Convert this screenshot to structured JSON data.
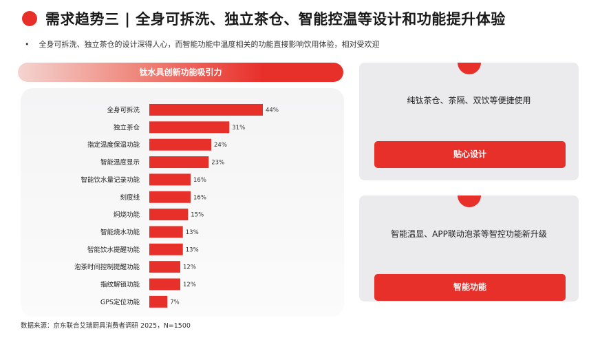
{
  "header": {
    "title": "需求趋势三 | 全身可拆洗、独立茶仓、智能控温等设计和功能提升体验",
    "bullet_marker": "•",
    "bullet": "全身可拆洗、独立茶仓的设计深得人心，而智能功能中温度相关的功能直接影响饮用体验，相对受欢迎"
  },
  "chart_banner": "钛水具创新功能吸引力",
  "chart_data": {
    "type": "bar",
    "orientation": "horizontal",
    "categories": [
      "全身可拆洗",
      "独立茶仓",
      "指定温度保温功能",
      "智能温度显示",
      "智能饮水量记录功能",
      "刻度线",
      "焖烧功能",
      "智能烧水功能",
      "智能饮水提醒功能",
      "泡茶时间控制提醒功能",
      "指纹解锁功能",
      "GPS定位功能"
    ],
    "values": [
      44,
      31,
      24,
      23,
      16,
      16,
      15,
      13,
      13,
      12,
      12,
      7
    ],
    "value_suffix": "%",
    "bar_color": "#e8302b",
    "grid": false
  },
  "cards": [
    {
      "text": "纯钛茶仓、茶隔、双饮等便捷使用",
      "button": "贴心设计"
    },
    {
      "text": "智能温显、APP联动泡茶等智控功能新升级",
      "button": "智能功能"
    }
  ],
  "source": "数据来源：京东联合艾瑞厨具消费者调研 2025，N=1500",
  "colors": {
    "accent": "#e8302b",
    "card_bg": "#ebebed"
  }
}
